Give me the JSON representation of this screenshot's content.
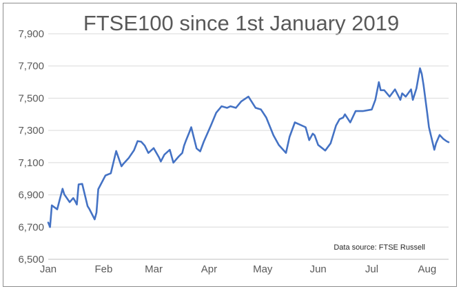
{
  "chart_data": {
    "type": "line",
    "title": "FTSE100 since 1st January 2019",
    "xlabel": "",
    "ylabel": "",
    "ylim": [
      6500,
      7900
    ],
    "yticks": [
      6500,
      6700,
      6900,
      7100,
      7300,
      7500,
      7700,
      7900
    ],
    "ytick_labels": [
      "6,500",
      "6,700",
      "6,900",
      "7,100",
      "7,300",
      "7,500",
      "7,700",
      "7,900"
    ],
    "xlim": [
      "2019-01-01",
      "2019-08-13"
    ],
    "xticks": [
      "2019-01-01",
      "2019-02-01",
      "2019-03-01",
      "2019-04-01",
      "2019-05-01",
      "2019-06-01",
      "2019-07-01",
      "2019-08-01"
    ],
    "xtick_labels": [
      "Jan",
      "Feb",
      "Mar",
      "Apr",
      "May",
      "Jun",
      "Jul",
      "Aug"
    ],
    "grid": true,
    "legend": false,
    "annotation": "Data source: FTSE Russell",
    "series_color": "#4472c4",
    "series": [
      {
        "x": [
          "2019-01-01",
          "2019-01-02",
          "2019-01-03",
          "2019-01-06",
          "2019-01-09",
          "2019-01-10",
          "2019-01-13",
          "2019-01-15",
          "2019-01-16",
          "2019-01-17",
          "2019-01-18",
          "2019-01-20",
          "2019-01-23",
          "2019-01-24",
          "2019-01-27",
          "2019-01-28",
          "2019-01-29",
          "2019-02-02",
          "2019-02-05",
          "2019-02-08",
          "2019-02-11",
          "2019-02-12",
          "2019-02-15",
          "2019-02-18",
          "2019-02-20",
          "2019-02-22",
          "2019-02-24",
          "2019-02-26",
          "2019-03-01",
          "2019-03-04",
          "2019-03-05",
          "2019-03-07",
          "2019-03-10",
          "2019-03-12",
          "2019-03-15",
          "2019-03-17",
          "2019-03-18",
          "2019-03-19",
          "2019-03-21",
          "2019-03-22",
          "2019-03-25",
          "2019-03-27",
          "2019-03-29",
          "2019-04-02",
          "2019-04-05",
          "2019-04-08",
          "2019-04-11",
          "2019-04-13",
          "2019-04-16",
          "2019-04-19",
          "2019-04-23",
          "2019-04-27",
          "2019-04-30",
          "2019-05-03",
          "2019-05-07",
          "2019-05-10",
          "2019-05-14",
          "2019-05-16",
          "2019-05-19",
          "2019-05-21",
          "2019-05-25",
          "2019-05-27",
          "2019-05-29",
          "2019-05-30",
          "2019-06-01",
          "2019-06-05",
          "2019-06-08",
          "2019-06-11",
          "2019-06-13",
          "2019-06-15",
          "2019-06-16",
          "2019-06-19",
          "2019-06-22",
          "2019-06-26",
          "2019-07-01",
          "2019-07-03",
          "2019-07-05",
          "2019-07-06",
          "2019-07-08",
          "2019-07-11",
          "2019-07-14",
          "2019-07-17",
          "2019-07-18",
          "2019-07-20",
          "2019-07-23",
          "2019-07-24",
          "2019-07-26",
          "2019-07-28",
          "2019-07-29",
          "2019-07-30",
          "2019-08-01",
          "2019-08-02",
          "2019-08-05",
          "2019-08-06",
          "2019-08-08",
          "2019-08-10",
          "2019-08-12",
          "2019-08-13"
        ],
        "values": [
          6728,
          6700,
          6835,
          6810,
          6938,
          6903,
          6855,
          6880,
          6862,
          6840,
          6965,
          6968,
          6830,
          6812,
          6748,
          6790,
          6935,
          7020,
          7034,
          7172,
          7077,
          7092,
          7128,
          7177,
          7234,
          7230,
          7205,
          7160,
          7190,
          7132,
          7107,
          7150,
          7180,
          7100,
          7138,
          7160,
          7205,
          7235,
          7290,
          7320,
          7188,
          7170,
          7230,
          7330,
          7410,
          7450,
          7440,
          7450,
          7440,
          7480,
          7510,
          7440,
          7430,
          7380,
          7270,
          7210,
          7160,
          7260,
          7350,
          7340,
          7320,
          7240,
          7280,
          7270,
          7210,
          7175,
          7220,
          7330,
          7370,
          7380,
          7400,
          7350,
          7420,
          7420,
          7430,
          7490,
          7600,
          7550,
          7550,
          7510,
          7555,
          7490,
          7530,
          7510,
          7555,
          7490,
          7560,
          7686,
          7650,
          7580,
          7410,
          7320,
          7180,
          7220,
          7272,
          7248,
          7232,
          7227
        ]
      }
    ]
  }
}
